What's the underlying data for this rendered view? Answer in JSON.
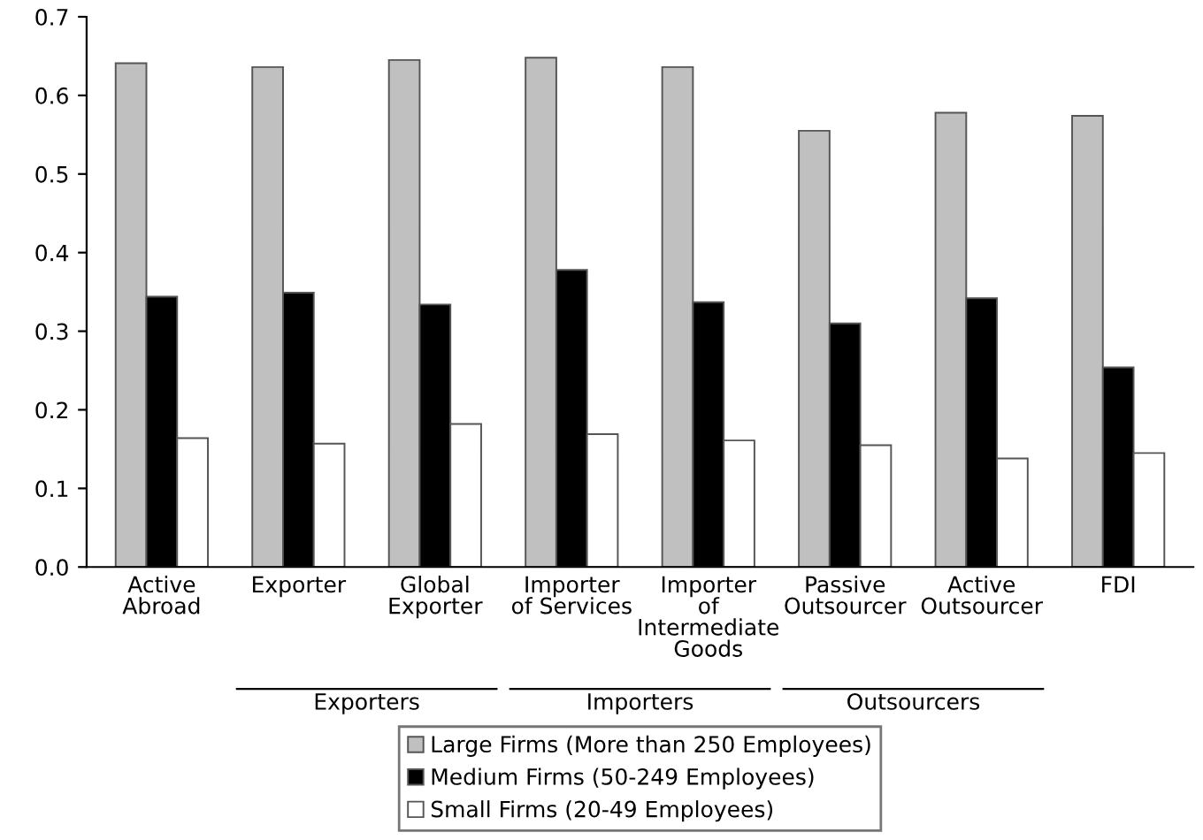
{
  "chart_data": {
    "type": "bar",
    "categories": [
      "Active\nAbroad",
      "Exporter",
      "Global\nExporter",
      "Importer\nof Services",
      "Importer\nof\nIntermediate\nGoods",
      "Passive\nOutsourcer",
      "Active\nOutsourcer",
      "FDI"
    ],
    "series": [
      {
        "name": "Large Firms (More than 250 Employees)",
        "color": "#c0c0c0",
        "values": [
          0.641,
          0.636,
          0.645,
          0.648,
          0.636,
          0.555,
          0.578,
          0.574
        ]
      },
      {
        "name": "Medium Firms (50-249 Employees)",
        "color": "#000000",
        "values": [
          0.344,
          0.349,
          0.334,
          0.378,
          0.337,
          0.31,
          0.342,
          0.254
        ]
      },
      {
        "name": "Small Firms (20-49 Employees)",
        "color": "#ffffff",
        "values": [
          0.164,
          0.157,
          0.182,
          0.169,
          0.161,
          0.155,
          0.138,
          0.145
        ]
      }
    ],
    "annotations": [
      "Exporters",
      "Importers",
      "Outsourcers"
    ],
    "ylim": [
      0,
      0.7
    ],
    "yticks": [
      {
        "value": 0,
        "label": "0.0"
      },
      0.1,
      0.2,
      0.3,
      0.4,
      0.5,
      0.6,
      0.7
    ],
    "grid": false,
    "legend": "bottom"
  }
}
